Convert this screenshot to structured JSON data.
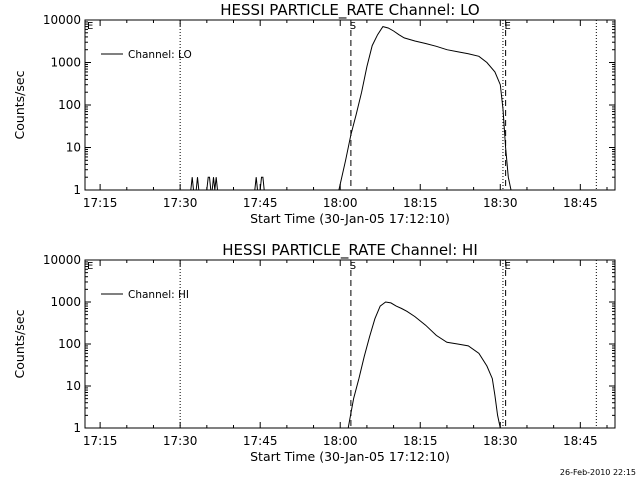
{
  "chart_data": [
    {
      "type": "line",
      "title": "HESSI PARTICLE_RATE Channel: LO",
      "xlabel": "Start Time (30-Jan-05 17:12:10)",
      "ylabel": "Counts/sec",
      "yscale": "log",
      "ylim": [
        1,
        10000
      ],
      "xlim": [
        "17:12:10",
        "18:51:30"
      ],
      "x_tick_labels": [
        "17:15",
        "17:30",
        "17:45",
        "18:00",
        "18:15",
        "18:30",
        "18:45"
      ],
      "y_tick_labels": [
        "1",
        "10",
        "100",
        "1000",
        "10000"
      ],
      "legend": {
        "position": "top-left",
        "entries": [
          "Channel: LO"
        ]
      },
      "markers": [
        {
          "label": "S",
          "time": "18:02:00",
          "style": "dashed"
        },
        {
          "label": "E",
          "time": "18:31:00",
          "style": "dashed"
        }
      ],
      "reference_lines": [
        {
          "time": "17:30:00",
          "style": "dotted"
        },
        {
          "time": "18:30:30",
          "style": "dotted"
        },
        {
          "time": "18:48:00",
          "style": "dotted"
        }
      ],
      "series": [
        {
          "name": "Channel: LO",
          "x": [
            "17:12:10",
            "17:32:00",
            "17:32:15",
            "17:32:30",
            "17:32:45",
            "17:33:00",
            "17:33:15",
            "17:33:30",
            "17:35:00",
            "17:35:15",
            "17:35:30",
            "17:35:45",
            "17:36:00",
            "17:36:15",
            "17:36:30",
            "17:36:45",
            "17:37:00",
            "17:44:00",
            "17:44:15",
            "17:44:30",
            "17:45:00",
            "17:45:15",
            "17:45:30",
            "17:45:45",
            "17:46:00",
            "17:59:45",
            "18:01:00",
            "18:02:00",
            "18:03:00",
            "18:04:00",
            "18:05:00",
            "18:06:00",
            "18:07:00",
            "18:08:00",
            "18:09:00",
            "18:10:00",
            "18:11:00",
            "18:12:00",
            "18:14:00",
            "18:16:00",
            "18:18:00",
            "18:20:00",
            "18:22:00",
            "18:24:00",
            "18:26:00",
            "18:27:30",
            "18:29:00",
            "18:30:00",
            "18:30:30",
            "18:31:00",
            "18:31:30",
            "18:32:00",
            "18:51:30"
          ],
          "y": [
            1,
            1,
            2,
            1,
            1,
            1,
            2,
            1,
            1,
            2,
            2,
            1,
            1,
            2,
            1,
            2,
            1,
            1,
            2,
            1,
            1,
            2,
            2,
            1,
            1,
            1,
            5,
            20,
            60,
            200,
            800,
            2500,
            4500,
            7000,
            6500,
            5500,
            4500,
            3800,
            3200,
            2800,
            2400,
            2000,
            1800,
            1600,
            1400,
            1000,
            600,
            300,
            80,
            10,
            2,
            1,
            1
          ]
        }
      ]
    },
    {
      "type": "line",
      "title": "HESSI PARTICLE_RATE Channel: HI",
      "xlabel": "Start Time (30-Jan-05 17:12:10)",
      "ylabel": "Counts/sec",
      "yscale": "log",
      "ylim": [
        1,
        10000
      ],
      "xlim": [
        "17:12:10",
        "18:51:30"
      ],
      "x_tick_labels": [
        "17:15",
        "17:30",
        "17:45",
        "18:00",
        "18:15",
        "18:30",
        "18:45"
      ],
      "y_tick_labels": [
        "1",
        "10",
        "100",
        "1000",
        "10000"
      ],
      "legend": {
        "position": "top-left",
        "entries": [
          "Channel: HI"
        ]
      },
      "markers": [
        {
          "label": "S",
          "time": "18:02:00",
          "style": "dashed"
        },
        {
          "label": "E",
          "time": "18:31:00",
          "style": "dashed"
        }
      ],
      "reference_lines": [
        {
          "time": "17:30:00",
          "style": "dotted"
        },
        {
          "time": "18:30:30",
          "style": "dotted"
        },
        {
          "time": "18:48:00",
          "style": "dotted"
        }
      ],
      "series": [
        {
          "name": "Channel: HI",
          "x": [
            "17:12:10",
            "18:01:30",
            "18:02:30",
            "18:03:30",
            "18:04:30",
            "18:05:30",
            "18:06:30",
            "18:07:30",
            "18:08:30",
            "18:09:30",
            "18:10:30",
            "18:11:30",
            "18:12:30",
            "18:14:00",
            "18:16:00",
            "18:18:00",
            "18:20:00",
            "18:22:00",
            "18:24:00",
            "18:26:00",
            "18:27:30",
            "18:28:30",
            "18:29:00",
            "18:29:30",
            "18:30:00",
            "18:51:30"
          ],
          "y": [
            1,
            1,
            5,
            15,
            50,
            150,
            400,
            800,
            1000,
            950,
            800,
            700,
            600,
            450,
            280,
            160,
            110,
            100,
            90,
            60,
            30,
            15,
            6,
            2,
            1,
            1
          ]
        }
      ]
    }
  ],
  "footer": {
    "timestamp": "26-Feb-2010 22:15"
  }
}
